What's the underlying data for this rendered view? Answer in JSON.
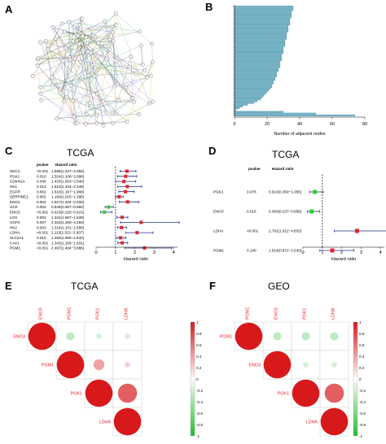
{
  "panels": {
    "a": {
      "label": "A"
    },
    "b": {
      "label": "B",
      "xlabel": "Number of adjacent nodes",
      "xticks": [
        0,
        20,
        40,
        60,
        80
      ],
      "xlim": [
        0,
        80
      ],
      "bar_color": "#6db3c8"
    },
    "c": {
      "label": "C",
      "title": "TCGA",
      "col_pvalue": "pvalue",
      "col_hr": "Hazard ratio",
      "xlabel": "Hazard ratio",
      "xticks": [
        0,
        1,
        2,
        3,
        4
      ],
      "xlim": [
        0,
        4.2
      ]
    },
    "d": {
      "label": "D",
      "title": "TCGA",
      "col_pvalue": "pvalue",
      "col_hr": "Hazard ratio",
      "xlabel": "Hazard ratio",
      "xticks": [
        0,
        1,
        2,
        3,
        4
      ],
      "xlim": [
        0,
        4.2
      ]
    },
    "e": {
      "label": "E",
      "title": "TCGA"
    },
    "f": {
      "label": "F",
      "title": "GEO"
    }
  },
  "chart_data": [
    {
      "id": "b",
      "type": "bar",
      "orientation": "horizontal",
      "xlabel": "Number of adjacent nodes",
      "xlim": [
        0,
        80
      ],
      "values": [
        36,
        36,
        36,
        35,
        35,
        35,
        35,
        34,
        34,
        34,
        34,
        33,
        33,
        33,
        33,
        32,
        32,
        32,
        32,
        31,
        31,
        31,
        31,
        30,
        30,
        30,
        30,
        29,
        29,
        29,
        29,
        28,
        28,
        28,
        28,
        27,
        27,
        26,
        26,
        26,
        25,
        25,
        24,
        24,
        23,
        23,
        22,
        21,
        20,
        19,
        18,
        17,
        16,
        14,
        12,
        8,
        5,
        3,
        1,
        30,
        50,
        74
      ]
    },
    {
      "id": "c",
      "type": "forest",
      "title": "TCGA",
      "xlabel": "Hazard ratio",
      "xlim": [
        0,
        4.2
      ],
      "rows": [
        {
          "gene": "SDC4",
          "pvalue": "<0.001",
          "hr_text": "1.595(1.237−2.056)",
          "hr": 1.595,
          "lo": 1.237,
          "hi": 2.056
        },
        {
          "gene": "PGK1",
          "pvalue": "0.010",
          "hr_text": "1.524(1.108−2.098)",
          "hr": 1.524,
          "lo": 1.108,
          "hi": 2.098
        },
        {
          "gene": "CDKN1A",
          "pvalue": "0.048",
          "hr_text": "1.433(1.003−2.046)",
          "hr": 1.433,
          "lo": 1.003,
          "hi": 2.046
        },
        {
          "gene": "HK1",
          "pvalue": "0.013",
          "hr_text": "1.610(1.104−2.348)",
          "hr": 1.61,
          "lo": 1.104,
          "hi": 2.348
        },
        {
          "gene": "EGFR",
          "pvalue": "0.002",
          "hr_text": "1.516(1.167−1.968)",
          "hr": 1.516,
          "lo": 1.167,
          "hi": 1.968
        },
        {
          "gene": "SERPINE1",
          "pvalue": "0.002",
          "hr_text": "1.190(1.015−1.396)",
          "hr": 1.19,
          "lo": 1.015,
          "hi": 1.396
        },
        {
          "gene": "ENO1",
          "pvalue": "0.002",
          "hr_text": "1.627(1.204−2.200)",
          "hr": 1.627,
          "lo": 1.204,
          "hi": 2.2
        },
        {
          "gene": "GCK",
          "pvalue": "0.002",
          "hr_text": "0.646(0.467−0.894)",
          "hr": 0.646,
          "lo": 0.467,
          "hi": 0.894
        },
        {
          "gene": "ENO3",
          "pvalue": "<0.001",
          "hr_text": "0.423(0.220−0.815)",
          "hr": 0.423,
          "lo": 0.22,
          "hi": 0.815
        },
        {
          "gene": "LOX",
          "pvalue": "0.002",
          "hr_text": "1.341(1.067−1.639)",
          "hr": 1.341,
          "lo": 1.067,
          "hi": 1.639
        },
        {
          "gene": "UGP2",
          "pvalue": "0.007",
          "hr_text": "2.323(1.260−4.283)",
          "hr": 2.323,
          "lo": 1.26,
          "hi": 4.283
        },
        {
          "gene": "HK2",
          "pvalue": "0.003",
          "hr_text": "1.314(1.101−1.568)",
          "hr": 1.314,
          "lo": 1.101,
          "hi": 1.568
        },
        {
          "gene": "LDHA",
          "pvalue": "<0.001",
          "hr_text": "2.113(1.521−2.937)",
          "hr": 2.113,
          "lo": 1.521,
          "hi": 2.937
        },
        {
          "gene": "SLC2A1",
          "pvalue": "0.010",
          "hr_text": "1.265(1.060−1.542)",
          "hr": 1.265,
          "lo": 1.06,
          "hi": 1.542
        },
        {
          "gene": "CAV1",
          "pvalue": "<0.001",
          "hr_text": "1.343(1.106−1.631)",
          "hr": 1.343,
          "lo": 1.106,
          "hi": 1.631
        },
        {
          "gene": "PGM1",
          "pvalue": "<0.001",
          "hr_text": "2.497(1.494−3.886)",
          "hr": 2.497,
          "lo": 1.494,
          "hi": 3.886
        }
      ]
    },
    {
      "id": "d",
      "type": "forest",
      "title": "TCGA",
      "xlabel": "Hazard ratio",
      "xlim": [
        0,
        4.2
      ],
      "rows": [
        {
          "gene": "PGK1",
          "pvalue": "0.078",
          "hr_text": "0.616(0.360−1.055)",
          "hr": 0.616,
          "lo": 0.36,
          "hi": 1.055
        },
        {
          "gene": "ENO3",
          "pvalue": "0.015",
          "hr_text": "0.450(0.237−0.856)",
          "hr": 0.45,
          "lo": 0.237,
          "hi": 0.856
        },
        {
          "gene": "LDHA",
          "pvalue": "<0.001",
          "hr_text": "2.791(1.612−4.833)",
          "hr": 2.791,
          "lo": 1.612,
          "hi": 4.833
        },
        {
          "gene": "PGM1",
          "pvalue": "0.140",
          "hr_text": "1.514(0.872−2.630)",
          "hr": 1.514,
          "lo": 0.872,
          "hi": 2.63
        }
      ]
    },
    {
      "id": "e",
      "type": "heatmap",
      "title": "TCGA",
      "labels": [
        "ENO3",
        "PGM1",
        "PGK1",
        "LDHA"
      ],
      "colorbar_ticks": [
        "1",
        "0.8",
        "0.6",
        "0.4",
        "0.2",
        "0",
        "-0.2",
        "-0.4",
        "-0.6",
        "-0.8",
        "-1"
      ],
      "matrix": [
        [
          1,
          -0.3,
          -0.2,
          -0.2
        ],
        [
          -0.3,
          1,
          0.4,
          0.2
        ],
        [
          -0.2,
          0.4,
          1,
          0.7
        ],
        [
          -0.2,
          0.2,
          0.7,
          1
        ]
      ]
    },
    {
      "id": "f",
      "type": "heatmap",
      "title": "GEO",
      "labels": [
        "PGM1",
        "ENO3",
        "PGK1",
        "LDHA"
      ],
      "colorbar_ticks": [
        "1",
        "0.8",
        "0.6",
        "0.4",
        "0.2",
        "0",
        "-0.2",
        "-0.4",
        "-0.6",
        "-0.8",
        "-1"
      ],
      "matrix": [
        [
          1,
          -0.3,
          -0.3,
          -0.3
        ],
        [
          -0.3,
          1,
          -0.2,
          -0.2
        ],
        [
          -0.3,
          -0.2,
          1,
          0.7
        ],
        [
          -0.3,
          -0.2,
          0.7,
          1
        ]
      ]
    }
  ]
}
